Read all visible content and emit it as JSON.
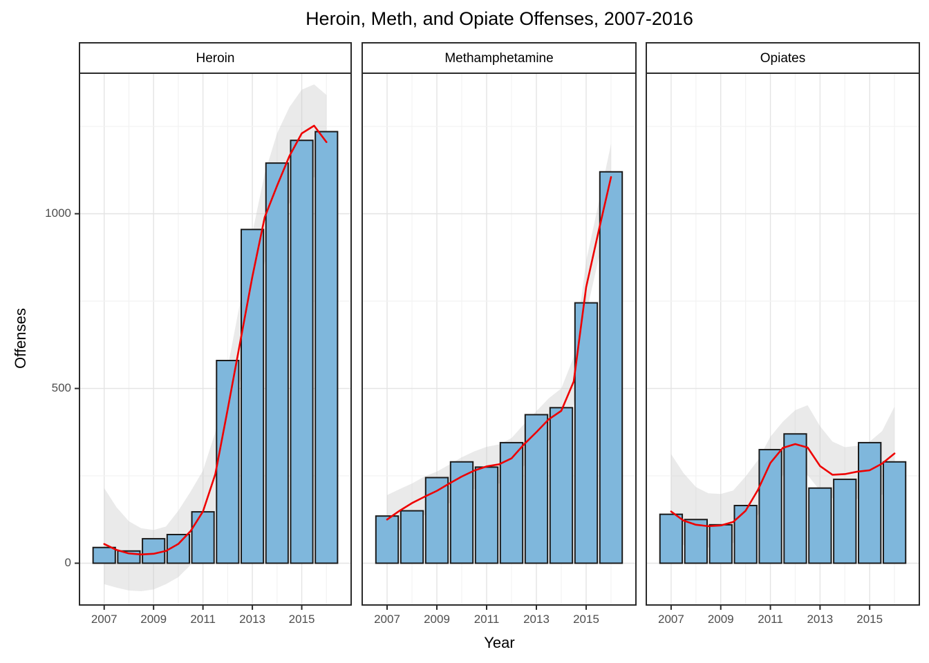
{
  "title": "Heroin, Meth, and Opiate Offenses, 2007-2016",
  "x_axis": {
    "label": "Year",
    "tick_labels": [
      "2007",
      "2009",
      "2011",
      "2013",
      "2015"
    ],
    "tick_years": [
      2007,
      2009,
      2011,
      2013,
      2015
    ],
    "minor_years": [
      2008,
      2010,
      2012,
      2014,
      2016
    ],
    "domain": [
      2006,
      2017
    ]
  },
  "y_axis": {
    "label": "Offenses",
    "tick_labels": [
      "0",
      "500",
      "1000"
    ],
    "tick_values": [
      0,
      500,
      1000
    ],
    "minor_values": [
      250,
      750,
      1250
    ],
    "domain": [
      -120,
      1400
    ]
  },
  "colors": {
    "bar_fill": "#7fb7dc",
    "bar_stroke": "#1a1a1a",
    "smooth_line": "#ee0000",
    "ribbon_fill": "#c9c9c9",
    "grid_major": "#e4e4e4",
    "grid_minor": "#f2f2f2",
    "panel_border": "#2a2a2a",
    "strip_bg": "#ffffff",
    "tick_label": "#4d4d4d",
    "text": "#000000"
  },
  "chart_data": {
    "type": "bar",
    "title": "Heroin, Meth, and Opiate Offenses, 2007-2016",
    "xlabel": "Year",
    "ylabel": "Offenses",
    "ylim": [
      -120,
      1400
    ],
    "grid": true,
    "legend": "none",
    "overlay": "red loess smooth line with gray confidence ribbon per facet",
    "categories": [
      2007,
      2008,
      2009,
      2010,
      2011,
      2012,
      2013,
      2014,
      2015,
      2016
    ],
    "facets": [
      {
        "label": "Heroin",
        "values": [
          45,
          35,
          70,
          82,
          147,
          580,
          955,
          1145,
          1210,
          1235
        ],
        "smooth": [
          [
            2007,
            55
          ],
          [
            2007.5,
            38
          ],
          [
            2008,
            28
          ],
          [
            2008.5,
            25
          ],
          [
            2009,
            27
          ],
          [
            2009.5,
            35
          ],
          [
            2010,
            55
          ],
          [
            2010.5,
            92
          ],
          [
            2011,
            148
          ],
          [
            2011.5,
            255
          ],
          [
            2012,
            440
          ],
          [
            2012.5,
            630
          ],
          [
            2013,
            820
          ],
          [
            2013.5,
            990
          ],
          [
            2014,
            1080
          ],
          [
            2014.5,
            1165
          ],
          [
            2015,
            1230
          ],
          [
            2015.5,
            1252
          ],
          [
            2016,
            1205
          ]
        ],
        "ribbon": [
          [
            2007,
            -60,
            215
          ],
          [
            2007.5,
            -70,
            160
          ],
          [
            2008,
            -78,
            120
          ],
          [
            2008.5,
            -80,
            100
          ],
          [
            2009,
            -75,
            95
          ],
          [
            2009.5,
            -60,
            105
          ],
          [
            2010,
            -40,
            150
          ],
          [
            2010.5,
            -5,
            205
          ],
          [
            2011,
            45,
            265
          ],
          [
            2011.5,
            150,
            375
          ],
          [
            2012,
            330,
            560
          ],
          [
            2012.5,
            520,
            745
          ],
          [
            2013,
            700,
            945
          ],
          [
            2013.5,
            860,
            1115
          ],
          [
            2014,
            955,
            1230
          ],
          [
            2014.5,
            1030,
            1305
          ],
          [
            2015,
            1085,
            1355
          ],
          [
            2015.5,
            1105,
            1370
          ],
          [
            2016,
            1055,
            1340
          ]
        ]
      },
      {
        "label": "Methamphetamine",
        "values": [
          135,
          150,
          245,
          290,
          275,
          345,
          425,
          445,
          745,
          1120
        ],
        "smooth": [
          [
            2007,
            125
          ],
          [
            2007.5,
            150
          ],
          [
            2008,
            172
          ],
          [
            2008.5,
            190
          ],
          [
            2009,
            207
          ],
          [
            2009.5,
            228
          ],
          [
            2010,
            248
          ],
          [
            2010.5,
            265
          ],
          [
            2011,
            277
          ],
          [
            2011.5,
            283
          ],
          [
            2012,
            300
          ],
          [
            2012.5,
            340
          ],
          [
            2013,
            375
          ],
          [
            2013.5,
            412
          ],
          [
            2014,
            436
          ],
          [
            2014.5,
            520
          ],
          [
            2015,
            790
          ],
          [
            2015.5,
            950
          ],
          [
            2016,
            1105
          ]
        ],
        "ribbon": [
          [
            2007,
            58,
            195
          ],
          [
            2007.5,
            95,
            212
          ],
          [
            2008,
            118,
            228
          ],
          [
            2008.5,
            138,
            248
          ],
          [
            2009,
            152,
            262
          ],
          [
            2009.5,
            172,
            282
          ],
          [
            2010,
            192,
            303
          ],
          [
            2010.5,
            212,
            320
          ],
          [
            2011,
            222,
            333
          ],
          [
            2011.5,
            228,
            340
          ],
          [
            2012,
            245,
            358
          ],
          [
            2012.5,
            278,
            398
          ],
          [
            2013,
            318,
            435
          ],
          [
            2013.5,
            352,
            472
          ],
          [
            2014,
            375,
            500
          ],
          [
            2014.5,
            455,
            590
          ],
          [
            2015,
            715,
            865
          ],
          [
            2015.5,
            870,
            1030
          ],
          [
            2016,
            1010,
            1200
          ]
        ]
      },
      {
        "label": "Opiates",
        "values": [
          140,
          125,
          110,
          165,
          325,
          370,
          215,
          240,
          345,
          290
        ],
        "smooth": [
          [
            2007,
            148
          ],
          [
            2007.5,
            122
          ],
          [
            2008,
            110
          ],
          [
            2008.5,
            106
          ],
          [
            2009,
            108
          ],
          [
            2009.5,
            118
          ],
          [
            2010,
            150
          ],
          [
            2010.5,
            210
          ],
          [
            2011,
            287
          ],
          [
            2011.5,
            330
          ],
          [
            2012,
            341
          ],
          [
            2012.5,
            331
          ],
          [
            2013,
            278
          ],
          [
            2013.5,
            253
          ],
          [
            2014,
            255
          ],
          [
            2014.5,
            262
          ],
          [
            2015,
            266
          ],
          [
            2015.5,
            285
          ],
          [
            2016,
            314
          ]
        ],
        "ribbon": [
          [
            2007,
            85,
            312
          ],
          [
            2007.5,
            52,
            258
          ],
          [
            2008,
            42,
            218
          ],
          [
            2008.5,
            45,
            200
          ],
          [
            2009,
            48,
            198
          ],
          [
            2009.5,
            58,
            208
          ],
          [
            2010,
            88,
            248
          ],
          [
            2010.5,
            138,
            295
          ],
          [
            2011,
            212,
            362
          ],
          [
            2011.5,
            252,
            405
          ],
          [
            2012,
            268,
            438
          ],
          [
            2012.5,
            252,
            452
          ],
          [
            2013,
            208,
            392
          ],
          [
            2013.5,
            186,
            348
          ],
          [
            2014,
            180,
            332
          ],
          [
            2014.5,
            184,
            336
          ],
          [
            2015,
            188,
            348
          ],
          [
            2015.5,
            196,
            378
          ],
          [
            2016,
            212,
            448
          ]
        ]
      }
    ]
  }
}
